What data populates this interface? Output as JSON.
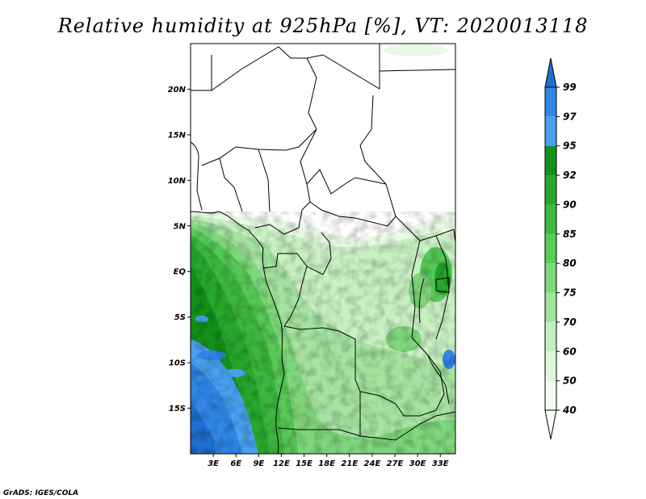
{
  "title": "Relative humidity at 925hPa [%], VT: 2020013118",
  "credit": "GrADS: IGES/COLA",
  "map": {
    "lon_range": [
      0,
      35
    ],
    "lat_range": [
      -20,
      25
    ],
    "lat_ticks": [
      {
        "value": 20,
        "label": "20N"
      },
      {
        "value": 15,
        "label": "15N"
      },
      {
        "value": 10,
        "label": "10N"
      },
      {
        "value": 5,
        "label": "5N"
      },
      {
        "value": 0,
        "label": "EQ"
      },
      {
        "value": -5,
        "label": "5S"
      },
      {
        "value": -10,
        "label": "10S"
      },
      {
        "value": -15,
        "label": "15S"
      }
    ],
    "lon_ticks": [
      {
        "value": 3,
        "label": "3E"
      },
      {
        "value": 6,
        "label": "6E"
      },
      {
        "value": 9,
        "label": "9E"
      },
      {
        "value": 12,
        "label": "12E"
      },
      {
        "value": 15,
        "label": "15E"
      },
      {
        "value": 18,
        "label": "18E"
      },
      {
        "value": 21,
        "label": "21E"
      },
      {
        "value": 24,
        "label": "24E"
      },
      {
        "value": 27,
        "label": "27E"
      },
      {
        "value": 30,
        "label": "30E"
      },
      {
        "value": 33,
        "label": "33E"
      }
    ]
  },
  "colorbar": {
    "levels": [
      {
        "label": "99"
      },
      {
        "label": "97"
      },
      {
        "label": "95"
      },
      {
        "label": "92"
      },
      {
        "label": "90"
      },
      {
        "label": "85"
      },
      {
        "label": "80"
      },
      {
        "label": "75"
      },
      {
        "label": "70"
      },
      {
        "label": "60"
      },
      {
        "label": "50"
      },
      {
        "label": "40"
      }
    ],
    "colors": [
      "#1e6fd0",
      "#2f86e6",
      "#4aa0f0",
      "#12921a",
      "#27a82c",
      "#3dba3f",
      "#57cc57",
      "#7dd97b",
      "#a2e59e",
      "#c2efbd",
      "#ddf7d8",
      "#f2fcf0",
      "#ffffff"
    ],
    "top_color": "#1e6fd0",
    "bottom_color": "#ffffff"
  },
  "colors": {
    "land_white": "#ffffff",
    "border": "#000000"
  }
}
